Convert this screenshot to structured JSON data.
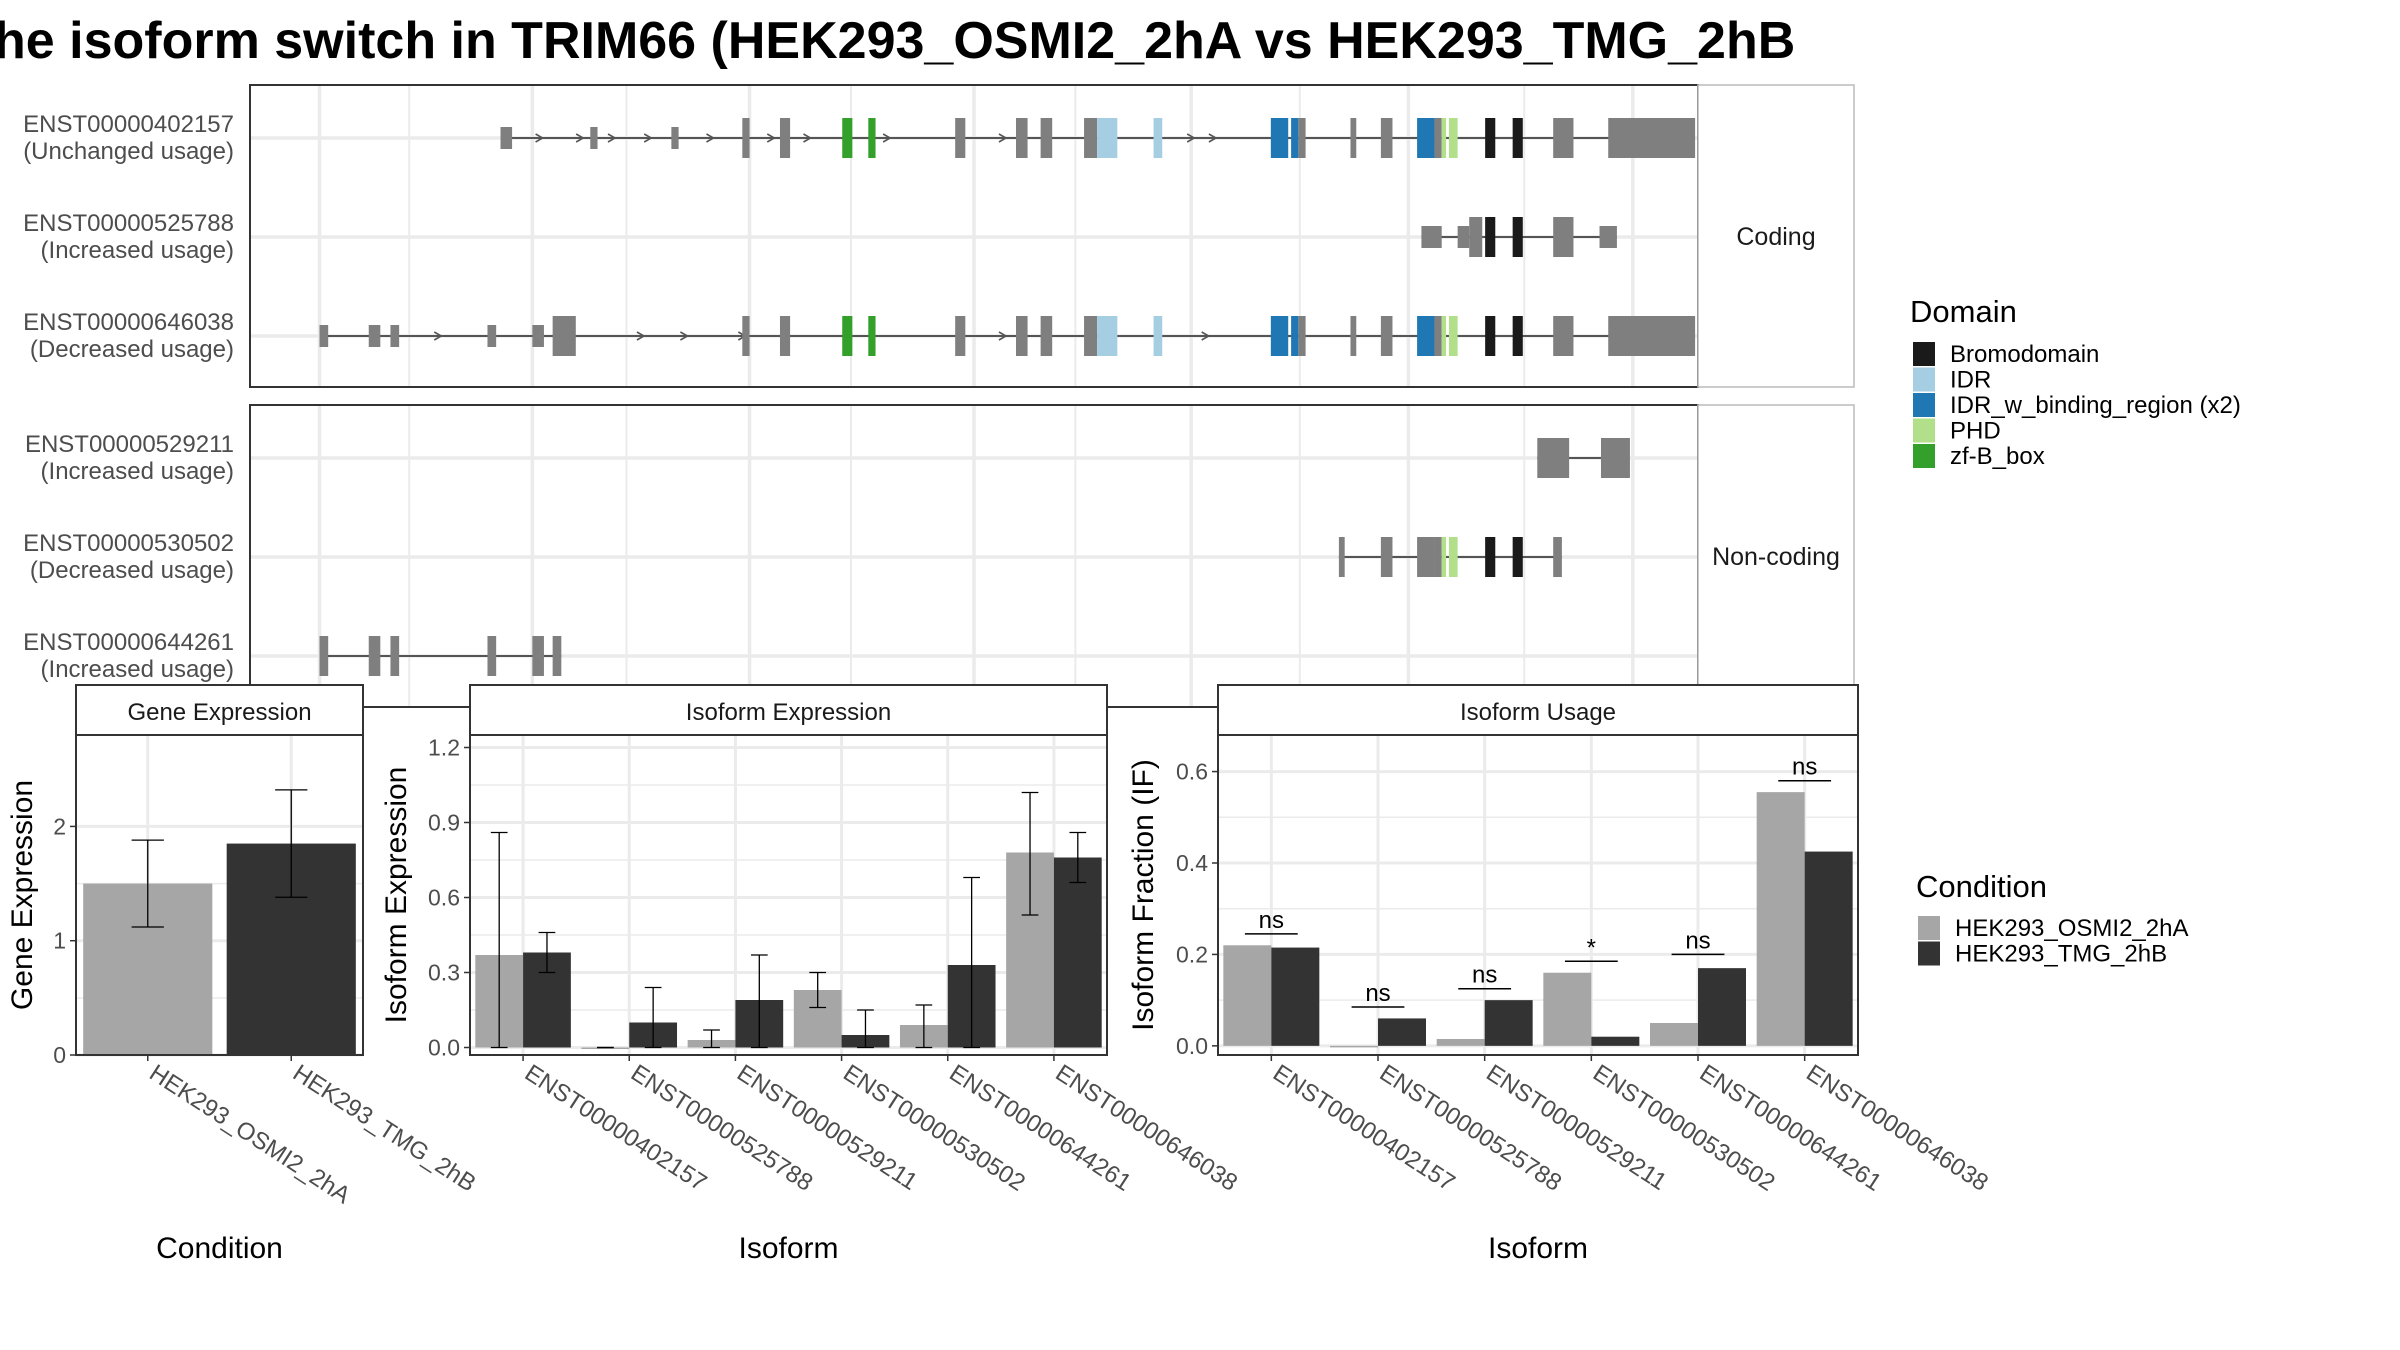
{
  "title": "he isoform switch in TRIM66 (HEK293_OSMI2_2hA vs HEK293_TMG_2hB",
  "colors": {
    "intron": "#555555",
    "exon": "#7f7f7f",
    "panel_border": "#333333",
    "strip_border": "#bbbbbb",
    "grid": "#ebebeb",
    "bar_condition_a": "#a6a6a6",
    "bar_condition_b": "#333333"
  },
  "transcript_panels": [
    {
      "label": "Coding",
      "transcripts": [
        {
          "id": "ENST00000402157",
          "usage": "(Unchanged usage)",
          "introns": [
            [
              0.173,
              0.958
            ]
          ],
          "exons": [
            {
              "s": 0.173,
              "e": 0.181,
              "h": "m"
            },
            {
              "s": 0.235,
              "e": 0.24,
              "h": "m"
            },
            {
              "s": 0.291,
              "e": 0.296,
              "h": "m"
            },
            {
              "s": 0.34,
              "e": 0.345,
              "h": "t"
            },
            {
              "s": 0.366,
              "e": 0.373,
              "h": "t"
            },
            {
              "s": 0.409,
              "e": 0.416,
              "h": "t",
              "d": "zf"
            },
            {
              "s": 0.427,
              "e": 0.432,
              "h": "t",
              "d": "zf"
            },
            {
              "s": 0.487,
              "e": 0.494,
              "h": "t"
            },
            {
              "s": 0.529,
              "e": 0.537,
              "h": "t"
            },
            {
              "s": 0.546,
              "e": 0.554,
              "h": "t"
            },
            {
              "s": 0.576,
              "e": 0.585,
              "h": "t"
            },
            {
              "s": 0.585,
              "e": 0.599,
              "h": "t",
              "d": "idr"
            },
            {
              "s": 0.624,
              "e": 0.63,
              "h": "t",
              "d": "idr"
            },
            {
              "s": 0.705,
              "e": 0.717,
              "h": "t",
              "d": "idrb"
            },
            {
              "s": 0.719,
              "e": 0.724,
              "h": "t",
              "d": "idrb"
            },
            {
              "s": 0.724,
              "e": 0.729,
              "h": "t"
            },
            {
              "s": 0.76,
              "e": 0.764,
              "h": "t"
            },
            {
              "s": 0.781,
              "e": 0.789,
              "h": "t"
            },
            {
              "s": 0.806,
              "e": 0.818,
              "h": "t",
              "d": "idrb"
            },
            {
              "s": 0.818,
              "e": 0.823,
              "h": "t"
            },
            {
              "s": 0.823,
              "e": 0.826,
              "h": "t",
              "d": "phd"
            },
            {
              "s": 0.828,
              "e": 0.834,
              "h": "t",
              "d": "phd"
            },
            {
              "s": 0.853,
              "e": 0.86,
              "h": "t",
              "d": "bromo"
            },
            {
              "s": 0.872,
              "e": 0.879,
              "h": "t",
              "d": "bromo"
            },
            {
              "s": 0.9,
              "e": 0.914,
              "h": "t"
            },
            {
              "s": 0.938,
              "e": 0.998,
              "h": "u"
            }
          ],
          "arrows": [
            0.2,
            0.228,
            0.25,
            0.275,
            0.318,
            0.36,
            0.385,
            0.44,
            0.52,
            0.65,
            0.665
          ]
        },
        {
          "id": "ENST00000525788",
          "usage": "(Increased usage)",
          "introns": [
            [
              0.809,
              0.944
            ]
          ],
          "exons": [
            {
              "s": 0.809,
              "e": 0.823,
              "h": "m"
            },
            {
              "s": 0.834,
              "e": 0.842,
              "h": "m"
            },
            {
              "s": 0.842,
              "e": 0.851,
              "h": "t"
            },
            {
              "s": 0.853,
              "e": 0.86,
              "h": "t",
              "d": "bromo"
            },
            {
              "s": 0.872,
              "e": 0.879,
              "h": "t",
              "d": "bromo"
            },
            {
              "s": 0.9,
              "e": 0.914,
              "h": "t"
            },
            {
              "s": 0.932,
              "e": 0.944,
              "h": "m"
            }
          ],
          "arrows": []
        },
        {
          "id": "ENST00000646038",
          "usage": "(Decreased usage)",
          "introns": [
            [
              0.048,
              0.958
            ]
          ],
          "exons": [
            {
              "s": 0.048,
              "e": 0.054,
              "h": "m"
            },
            {
              "s": 0.082,
              "e": 0.09,
              "h": "m"
            },
            {
              "s": 0.097,
              "e": 0.103,
              "h": "m"
            },
            {
              "s": 0.164,
              "e": 0.17,
              "h": "m"
            },
            {
              "s": 0.195,
              "e": 0.203,
              "h": "m"
            },
            {
              "s": 0.209,
              "e": 0.225,
              "h": "t"
            },
            {
              "s": 0.34,
              "e": 0.345,
              "h": "t"
            },
            {
              "s": 0.366,
              "e": 0.373,
              "h": "t"
            },
            {
              "s": 0.409,
              "e": 0.416,
              "h": "t",
              "d": "zf"
            },
            {
              "s": 0.427,
              "e": 0.432,
              "h": "t",
              "d": "zf"
            },
            {
              "s": 0.487,
              "e": 0.494,
              "h": "t"
            },
            {
              "s": 0.529,
              "e": 0.537,
              "h": "t"
            },
            {
              "s": 0.546,
              "e": 0.554,
              "h": "t"
            },
            {
              "s": 0.576,
              "e": 0.585,
              "h": "t"
            },
            {
              "s": 0.585,
              "e": 0.599,
              "h": "t",
              "d": "idr"
            },
            {
              "s": 0.624,
              "e": 0.63,
              "h": "t",
              "d": "idr"
            },
            {
              "s": 0.705,
              "e": 0.717,
              "h": "t",
              "d": "idrb"
            },
            {
              "s": 0.719,
              "e": 0.724,
              "h": "t",
              "d": "idrb"
            },
            {
              "s": 0.724,
              "e": 0.729,
              "h": "t"
            },
            {
              "s": 0.76,
              "e": 0.764,
              "h": "t"
            },
            {
              "s": 0.781,
              "e": 0.789,
              "h": "t"
            },
            {
              "s": 0.806,
              "e": 0.818,
              "h": "t",
              "d": "idrb"
            },
            {
              "s": 0.818,
              "e": 0.823,
              "h": "t"
            },
            {
              "s": 0.823,
              "e": 0.826,
              "h": "t",
              "d": "phd"
            },
            {
              "s": 0.828,
              "e": 0.834,
              "h": "t",
              "d": "phd"
            },
            {
              "s": 0.853,
              "e": 0.86,
              "h": "t",
              "d": "bromo"
            },
            {
              "s": 0.872,
              "e": 0.879,
              "h": "t",
              "d": "bromo"
            },
            {
              "s": 0.9,
              "e": 0.914,
              "h": "t"
            },
            {
              "s": 0.938,
              "e": 0.998,
              "h": "u"
            }
          ],
          "arrows": [
            0.13,
            0.27,
            0.3,
            0.34,
            0.52,
            0.66
          ]
        }
      ]
    },
    {
      "label": "Non-coding",
      "transcripts": [
        {
          "id": "ENST00000529211",
          "usage": "(Increased usage)",
          "introns": [
            [
              0.889,
              0.933
            ]
          ],
          "exons": [
            {
              "s": 0.889,
              "e": 0.911,
              "h": "n"
            },
            {
              "s": 0.933,
              "e": 0.953,
              "h": "n"
            }
          ],
          "arrows": []
        },
        {
          "id": "ENST00000530502",
          "usage": "(Decreased usage)",
          "introns": [
            [
              0.752,
              0.906
            ]
          ],
          "exons": [
            {
              "s": 0.752,
              "e": 0.756,
              "h": "n"
            },
            {
              "s": 0.781,
              "e": 0.789,
              "h": "n"
            },
            {
              "s": 0.806,
              "e": 0.818,
              "h": "n"
            },
            {
              "s": 0.818,
              "e": 0.823,
              "h": "n"
            },
            {
              "s": 0.823,
              "e": 0.826,
              "h": "n",
              "d": "phd"
            },
            {
              "s": 0.828,
              "e": 0.834,
              "h": "n",
              "d": "phd"
            },
            {
              "s": 0.853,
              "e": 0.86,
              "h": "n",
              "d": "bromo"
            },
            {
              "s": 0.872,
              "e": 0.879,
              "h": "n",
              "d": "bromo"
            },
            {
              "s": 0.9,
              "e": 0.906,
              "h": "n"
            }
          ],
          "arrows": []
        },
        {
          "id": "ENST00000644261",
          "usage": "(Increased usage)",
          "introns": [
            [
              0.048,
              0.215
            ]
          ],
          "exons": [
            {
              "s": 0.048,
              "e": 0.054,
              "h": "n"
            },
            {
              "s": 0.082,
              "e": 0.09,
              "h": "n"
            },
            {
              "s": 0.097,
              "e": 0.103,
              "h": "n"
            },
            {
              "s": 0.164,
              "e": 0.17,
              "h": "n"
            },
            {
              "s": 0.195,
              "e": 0.203,
              "h": "n"
            },
            {
              "s": 0.209,
              "e": 0.215,
              "h": "n"
            }
          ],
          "arrows": []
        }
      ]
    }
  ],
  "domain_legend": {
    "title": "Domain",
    "entries": [
      {
        "key": "bromo",
        "label": "Bromodomain",
        "color": "#1a1a1a"
      },
      {
        "key": "idr",
        "label": "IDR",
        "color": "#a6cee3"
      },
      {
        "key": "idrb",
        "label": "IDR_w_binding_region (x2)",
        "color": "#1f78b4"
      },
      {
        "key": "phd",
        "label": "PHD",
        "color": "#b2df8a"
      },
      {
        "key": "zf",
        "label": "zf-B_box",
        "color": "#33a02c"
      }
    ]
  },
  "condition_legend": {
    "title": "Condition",
    "entries": [
      {
        "label": "HEK293_OSMI2_2hA",
        "color": "#a6a6a6"
      },
      {
        "label": "HEK293_TMG_2hB",
        "color": "#333333"
      }
    ]
  },
  "chart_data": [
    {
      "type": "bar",
      "title": "Gene Expression",
      "xlabel": "Condition",
      "ylabel": "Gene Expression",
      "categories": [
        "HEK293_OSMI2_2hA",
        "HEK293_TMG_2hB"
      ],
      "values": [
        1.5,
        1.85
      ],
      "err_low": [
        1.12,
        1.38
      ],
      "err_high": [
        1.88,
        2.32
      ],
      "ylim": [
        0,
        2.8
      ],
      "yticks": [
        0,
        1,
        2
      ]
    },
    {
      "type": "bar",
      "title": "Isoform Expression",
      "xlabel": "Isoform",
      "ylabel": "Isoform Expression",
      "categories": [
        "ENST00000402157",
        "ENST00000525788",
        "ENST00000529211",
        "ENST00000530502",
        "ENST00000644261",
        "ENST00000646038"
      ],
      "series": [
        {
          "name": "HEK293_OSMI2_2hA",
          "values": [
            0.37,
            0.0,
            0.03,
            0.23,
            0.09,
            0.78
          ],
          "err_low": [
            0.0,
            0.0,
            0.0,
            0.16,
            0.0,
            0.53
          ],
          "err_high": [
            0.86,
            0.0,
            0.07,
            0.3,
            0.17,
            1.02
          ]
        },
        {
          "name": "HEK293_TMG_2hB",
          "values": [
            0.38,
            0.1,
            0.19,
            0.05,
            0.33,
            0.76
          ],
          "err_low": [
            0.3,
            0.0,
            0.0,
            0.0,
            0.0,
            0.66
          ],
          "err_high": [
            0.46,
            0.24,
            0.37,
            0.15,
            0.68,
            0.86
          ]
        }
      ],
      "ylim": [
        -0.03,
        1.25
      ],
      "yticks": [
        0.0,
        0.3,
        0.6,
        0.9,
        1.2
      ]
    },
    {
      "type": "bar",
      "title": "Isoform Usage",
      "xlabel": "Isoform",
      "ylabel": "Isoform Fraction (IF)",
      "categories": [
        "ENST00000402157",
        "ENST00000525788",
        "ENST00000529211",
        "ENST00000530502",
        "ENST00000644261",
        "ENST00000646038"
      ],
      "series": [
        {
          "name": "HEK293_OSMI2_2hA",
          "values": [
            0.22,
            0.0,
            0.015,
            0.16,
            0.05,
            0.555
          ]
        },
        {
          "name": "HEK293_TMG_2hB",
          "values": [
            0.215,
            0.06,
            0.1,
            0.02,
            0.17,
            0.425
          ]
        }
      ],
      "significance": [
        {
          "label": "ns",
          "y": 0.245
        },
        {
          "label": "ns",
          "y": 0.085
        },
        {
          "label": "ns",
          "y": 0.125
        },
        {
          "label": "*",
          "y": 0.185
        },
        {
          "label": "ns",
          "y": 0.2
        },
        {
          "label": "ns",
          "y": 0.58
        }
      ],
      "ylim": [
        -0.02,
        0.68
      ],
      "yticks": [
        0.0,
        0.2,
        0.4,
        0.6
      ]
    }
  ]
}
